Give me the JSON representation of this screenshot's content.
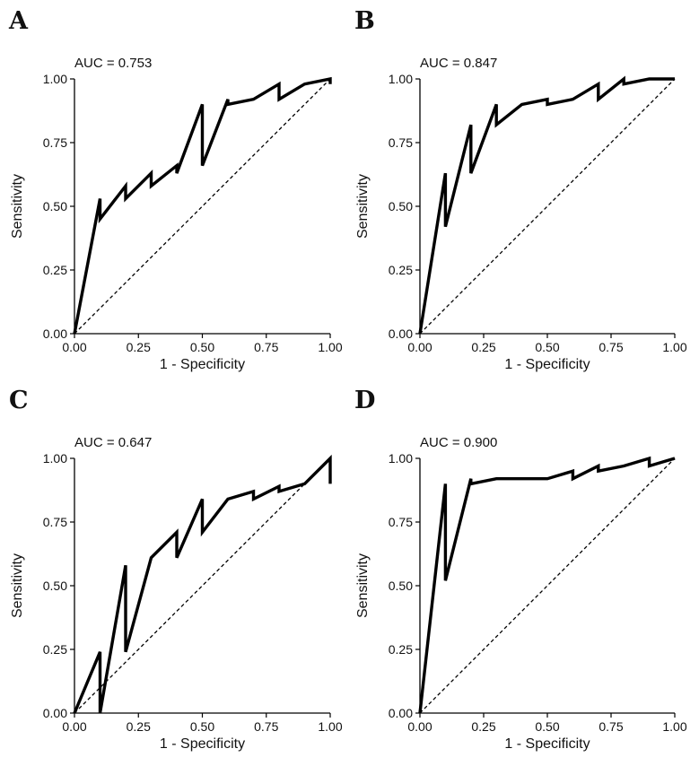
{
  "chart_data": [
    {
      "panel": "A",
      "type": "line",
      "annotation": "AUC = 0.753",
      "xlabel": "1 - Specificity",
      "ylabel": "Sensitivity",
      "xlim": [
        0,
        1
      ],
      "ylim": [
        0,
        1
      ],
      "xticks": [
        "0.00",
        "0.25",
        "0.50",
        "0.75",
        "1.00"
      ],
      "yticks": [
        "0.00",
        "0.25",
        "0.50",
        "0.75",
        "1.00"
      ],
      "reference_line": "diagonal-dashed",
      "grid": false,
      "x": [
        0,
        0.1,
        0.1,
        0.2,
        0.2,
        0.3,
        0.3,
        0.4,
        0.4,
        0.5,
        0.5,
        0.6,
        0.6,
        0.7,
        0.8,
        0.8,
        0.9,
        1.0,
        1.0
      ],
      "y": [
        0,
        0.53,
        0.45,
        0.58,
        0.53,
        0.63,
        0.58,
        0.66,
        0.63,
        0.9,
        0.66,
        0.92,
        0.9,
        0.92,
        0.98,
        0.92,
        0.98,
        1.0,
        0.98
      ]
    },
    {
      "panel": "B",
      "type": "line",
      "annotation": "AUC = 0.847",
      "xlabel": "1 - Specificity",
      "ylabel": "Sensitivity",
      "xlim": [
        0,
        1
      ],
      "ylim": [
        0,
        1
      ],
      "xticks": [
        "0.00",
        "0.25",
        "0.50",
        "0.75",
        "1.00"
      ],
      "yticks": [
        "0.00",
        "0.25",
        "0.50",
        "0.75",
        "1.00"
      ],
      "reference_line": "diagonal-dashed",
      "grid": false,
      "x": [
        0,
        0.1,
        0.1,
        0.2,
        0.2,
        0.3,
        0.3,
        0.4,
        0.5,
        0.5,
        0.6,
        0.7,
        0.7,
        0.8,
        0.8,
        0.9,
        1.0
      ],
      "y": [
        0,
        0.63,
        0.42,
        0.82,
        0.63,
        0.9,
        0.82,
        0.9,
        0.92,
        0.9,
        0.92,
        0.98,
        0.92,
        1.0,
        0.98,
        1.0,
        1.0
      ]
    },
    {
      "panel": "C",
      "type": "line",
      "annotation": "AUC = 0.647",
      "xlabel": "1 - Specificity",
      "ylabel": "Sensitivity",
      "xlim": [
        0,
        1
      ],
      "ylim": [
        0,
        1
      ],
      "xticks": [
        "0.00",
        "0.25",
        "0.50",
        "0.75",
        "1.00"
      ],
      "yticks": [
        "0.00",
        "0.25",
        "0.50",
        "0.75",
        "1.00"
      ],
      "reference_line": "diagonal-dashed",
      "grid": false,
      "x": [
        0,
        0.1,
        0.1,
        0.2,
        0.2,
        0.3,
        0.4,
        0.4,
        0.5,
        0.5,
        0.6,
        0.7,
        0.7,
        0.8,
        0.8,
        0.9,
        1.0,
        1.0
      ],
      "y": [
        0,
        0.24,
        0,
        0.58,
        0.24,
        0.61,
        0.71,
        0.61,
        0.84,
        0.71,
        0.84,
        0.87,
        0.84,
        0.89,
        0.87,
        0.9,
        1.0,
        0.9
      ]
    },
    {
      "panel": "D",
      "type": "line",
      "annotation": "AUC = 0.900",
      "xlabel": "1 - Specificity",
      "ylabel": "Sensitivity",
      "xlim": [
        0,
        1
      ],
      "ylim": [
        0,
        1
      ],
      "xticks": [
        "0.00",
        "0.25",
        "0.50",
        "0.75",
        "1.00"
      ],
      "yticks": [
        "0.00",
        "0.25",
        "0.50",
        "0.75",
        "1.00"
      ],
      "reference_line": "diagonal-dashed",
      "grid": false,
      "x": [
        0,
        0.1,
        0.1,
        0.2,
        0.2,
        0.3,
        0.5,
        0.6,
        0.6,
        0.7,
        0.7,
        0.8,
        0.9,
        0.9,
        1.0
      ],
      "y": [
        0,
        0.9,
        0.52,
        0.92,
        0.9,
        0.92,
        0.92,
        0.95,
        0.92,
        0.97,
        0.95,
        0.97,
        1.0,
        0.97,
        1.0
      ]
    }
  ]
}
